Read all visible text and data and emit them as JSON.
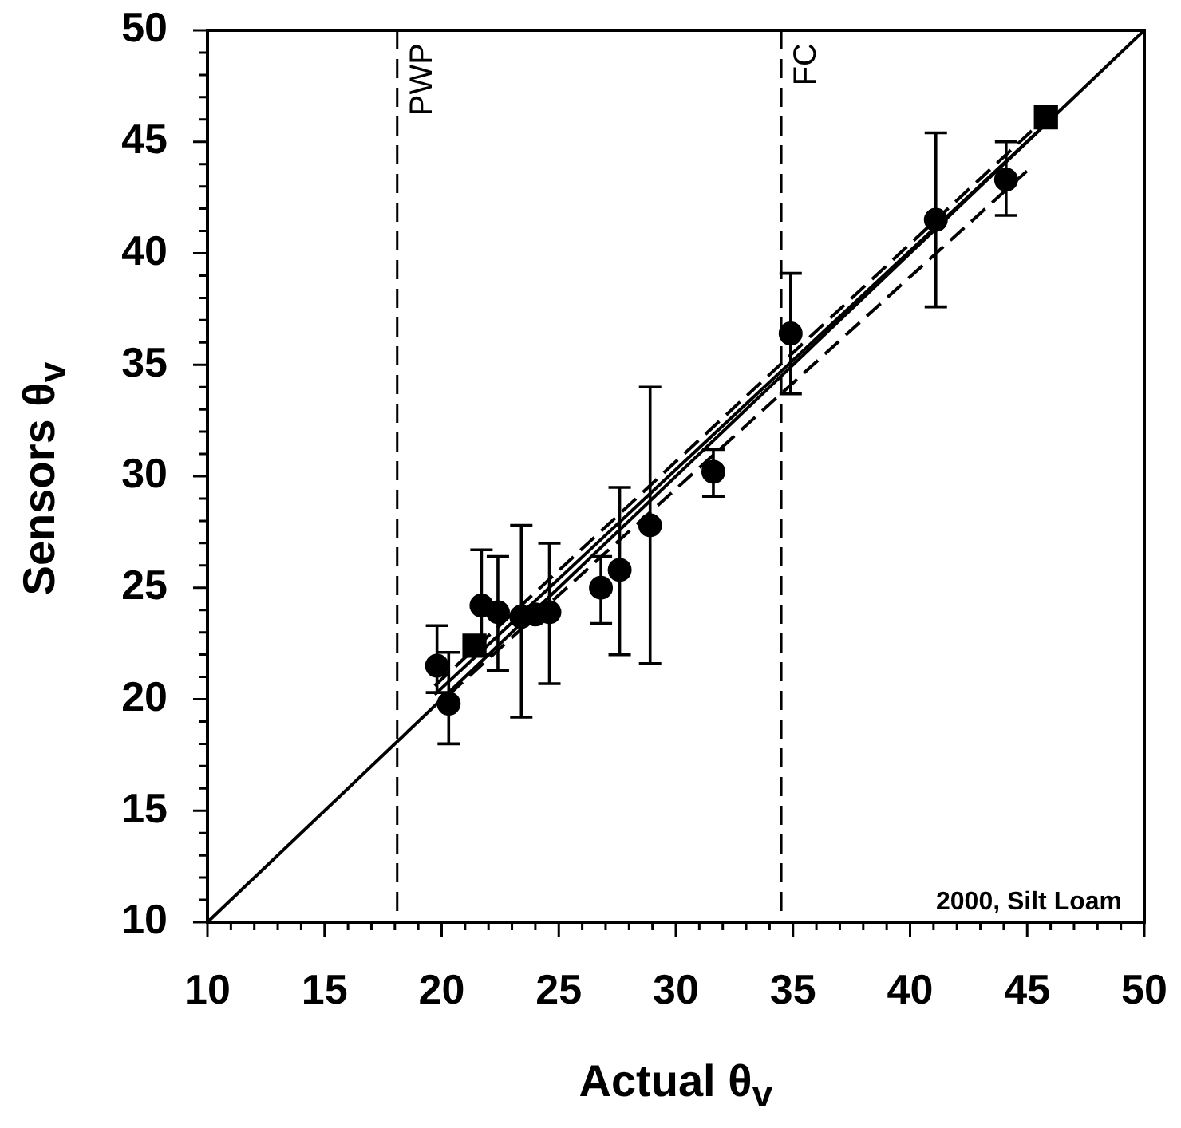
{
  "chart_data": {
    "type": "scatter",
    "xlabel": "Actual θ$_{v}$",
    "ylabel": "Sensors θ$_{v}$",
    "xlim": [
      10,
      50
    ],
    "ylim": [
      10,
      50
    ],
    "xticks": [
      10,
      {
        "value": 11,
        "label": null
      },
      {
        "value": 12,
        "label": null
      },
      {
        "value": 13,
        "label": null
      },
      {
        "value": 14,
        "label": null
      },
      15,
      {
        "value": 16,
        "label": null
      },
      {
        "value": 17,
        "label": null
      },
      {
        "value": 18,
        "label": null
      },
      {
        "value": 19,
        "label": null
      },
      20,
      {
        "value": 21,
        "label": null
      },
      {
        "value": 22,
        "label": null
      },
      {
        "value": 23,
        "label": null
      },
      {
        "value": 24,
        "label": null
      },
      25,
      {
        "value": 26,
        "label": null
      },
      {
        "value": 27,
        "label": null
      },
      {
        "value": 28,
        "label": null
      },
      {
        "value": 29,
        "label": null
      },
      30,
      {
        "value": 31,
        "label": null
      },
      {
        "value": 32,
        "label": null
      },
      {
        "value": 33,
        "label": null
      },
      {
        "value": 34,
        "label": null
      },
      35,
      {
        "value": 36,
        "label": null
      },
      {
        "value": 37,
        "label": null
      },
      {
        "value": 38,
        "label": null
      },
      {
        "value": 39,
        "label": null
      },
      40,
      {
        "value": 41,
        "label": null
      },
      {
        "value": 42,
        "label": null
      },
      {
        "value": 43,
        "label": null
      },
      {
        "value": 44,
        "label": null
      },
      45,
      {
        "value": 46,
        "label": null
      },
      {
        "value": 47,
        "label": null
      },
      {
        "value": 48,
        "label": null
      },
      {
        "value": 49,
        "label": null
      },
      50
    ],
    "yticks": [
      10,
      {
        "value": 11,
        "label": null
      },
      {
        "value": 12,
        "label": null
      },
      {
        "value": 13,
        "label": null
      },
      {
        "value": 14,
        "label": null
      },
      15,
      {
        "value": 16,
        "label": null
      },
      {
        "value": 17,
        "label": null
      },
      {
        "value": 18,
        "label": null
      },
      {
        "value": 19,
        "label": null
      },
      20,
      {
        "value": 21,
        "label": null
      },
      {
        "value": 22,
        "label": null
      },
      {
        "value": 23,
        "label": null
      },
      {
        "value": 24,
        "label": null
      },
      25,
      {
        "value": 26,
        "label": null
      },
      {
        "value": 27,
        "label": null
      },
      {
        "value": 28,
        "label": null
      },
      {
        "value": 29,
        "label": null
      },
      30,
      {
        "value": 31,
        "label": null
      },
      {
        "value": 32,
        "label": null
      },
      {
        "value": 33,
        "label": null
      },
      {
        "value": 34,
        "label": null
      },
      35,
      {
        "value": 36,
        "label": null
      },
      {
        "value": 37,
        "label": null
      },
      {
        "value": 38,
        "label": null
      },
      {
        "value": 39,
        "label": null
      },
      40,
      {
        "value": 41,
        "label": null
      },
      {
        "value": 42,
        "label": null
      },
      {
        "value": 43,
        "label": null
      },
      {
        "value": 44,
        "label": null
      },
      45,
      {
        "value": 46,
        "label": null
      },
      {
        "value": 47,
        "label": null
      },
      {
        "value": 48,
        "label": null
      },
      {
        "value": 49,
        "label": null
      },
      50
    ],
    "grid": false,
    "legend": false,
    "series": [
      {
        "type": "line",
        "color": "#000000",
        "marker": "none",
        "line_style": "solid",
        "x": [
          10,
          50
        ],
        "values": [
          10,
          50
        ]
      },
      {
        "type": "line",
        "color": "#000000",
        "marker": "none",
        "line_style": "dashed",
        "x": [
          19.7,
          45.2
        ],
        "values": [
          20.6,
          45.5
        ]
      },
      {
        "type": "line",
        "color": "#000000",
        "marker": "none",
        "line_style": "dashed",
        "x": [
          20.3,
          45.0
        ],
        "values": [
          20.2,
          43.7
        ]
      },
      {
        "type": "line",
        "color": "#000000",
        "marker": "none",
        "line_style": "solid",
        "x": [
          19.7,
          45.5
        ],
        "values": [
          20.2,
          45.5
        ]
      },
      {
        "type": "scatter",
        "color": "#000000",
        "marker": "circle",
        "x": [
          19.8,
          20.3,
          21.7,
          22.4,
          23.4,
          24.0,
          24.6,
          26.8,
          27.6,
          28.9,
          31.6,
          34.9,
          41.1,
          44.1
        ],
        "values": [
          21.5,
          19.8,
          24.2,
          23.9,
          23.7,
          23.8,
          23.9,
          25.0,
          25.8,
          27.8,
          30.2,
          36.4,
          41.5,
          43.3
        ],
        "errors": [
          [
            20.3,
            23.3
          ],
          [
            18.0,
            22.1
          ],
          [
            22.0,
            26.7
          ],
          [
            21.3,
            26.4
          ],
          [
            19.2,
            27.8
          ],
          null,
          [
            20.7,
            27.0
          ],
          [
            23.4,
            26.4
          ],
          [
            22.0,
            29.5
          ],
          [
            21.6,
            34.0
          ],
          [
            29.1,
            31.2
          ],
          [
            33.7,
            39.1
          ],
          [
            37.6,
            45.4
          ],
          [
            41.7,
            45.0
          ]
        ]
      },
      {
        "type": "scatter",
        "color": "#000000",
        "marker": "square",
        "x": [
          21.4,
          45.8
        ],
        "values": [
          22.4,
          46.1
        ]
      }
    ],
    "ref_lines": [
      {
        "axis": "x",
        "value": 18.1,
        "label": "PWP",
        "line_style": "dashed",
        "color": "#000000"
      },
      {
        "axis": "x",
        "value": 34.5,
        "label": "FC",
        "line_style": "dashed",
        "color": "#000000"
      }
    ],
    "annotations": [
      "2000, Silt Loam"
    ]
  }
}
